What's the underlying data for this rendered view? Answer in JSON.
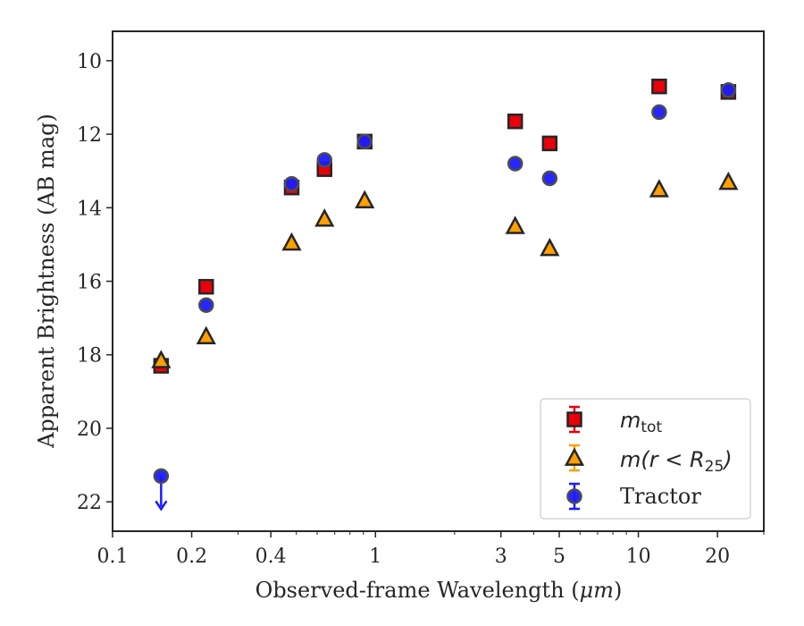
{
  "chart_data": {
    "type": "scatter",
    "xlabel_main": "Observed-frame Wavelength (",
    "xlabel_unit": "μm",
    "xlabel_close": ")",
    "ylabel": "Apparent Brightness (AB mag)",
    "x_scale": "log",
    "xlim": [
      0.1,
      30
    ],
    "ylim": [
      22.8,
      9.2
    ],
    "y_inverted": true,
    "x_ticks": [
      0.1,
      0.2,
      0.4,
      1,
      3,
      5,
      10,
      20
    ],
    "x_tick_labels": [
      "0.1",
      "0.2",
      "0.4",
      "1",
      "3",
      "5",
      "10",
      "20"
    ],
    "y_ticks": [
      10,
      12,
      14,
      16,
      18,
      20,
      22
    ],
    "y_tick_labels": [
      "10",
      "12",
      "14",
      "16",
      "18",
      "20",
      "22"
    ],
    "grid": false,
    "legend_position": "lower-right",
    "series": [
      {
        "key": "mtot",
        "marker": "square",
        "color": "#e8000b",
        "points": [
          {
            "x": 0.153,
            "y": 18.3
          },
          {
            "x": 0.227,
            "y": 16.15
          },
          {
            "x": 0.48,
            "y": 13.45
          },
          {
            "x": 0.64,
            "y": 12.95
          },
          {
            "x": 0.91,
            "y": 12.2
          },
          {
            "x": 3.4,
            "y": 11.65
          },
          {
            "x": 4.6,
            "y": 12.25
          },
          {
            "x": 12.0,
            "y": 10.7
          },
          {
            "x": 22.0,
            "y": 10.85
          }
        ]
      },
      {
        "key": "mr25",
        "marker": "triangle",
        "color": "#ff9f00",
        "points": [
          {
            "x": 0.153,
            "y": 18.15
          },
          {
            "x": 0.227,
            "y": 17.5
          },
          {
            "x": 0.48,
            "y": 14.95
          },
          {
            "x": 0.64,
            "y": 14.3
          },
          {
            "x": 0.91,
            "y": 13.8
          },
          {
            "x": 3.4,
            "y": 14.5
          },
          {
            "x": 4.6,
            "y": 15.1
          },
          {
            "x": 12.0,
            "y": 13.5
          },
          {
            "x": 22.0,
            "y": 13.3
          }
        ]
      },
      {
        "key": "tractor",
        "name": "Tractor",
        "marker": "circle",
        "color": "#1a1aff",
        "points": [
          {
            "x": 0.153,
            "y": 21.3,
            "upper_limit": true
          },
          {
            "x": 0.227,
            "y": 16.65
          },
          {
            "x": 0.48,
            "y": 13.35
          },
          {
            "x": 0.64,
            "y": 12.7
          },
          {
            "x": 0.91,
            "y": 12.2
          },
          {
            "x": 3.4,
            "y": 12.8
          },
          {
            "x": 4.6,
            "y": 13.2
          },
          {
            "x": 12.0,
            "y": 11.4
          },
          {
            "x": 22.0,
            "y": 10.8
          }
        ]
      }
    ],
    "legend": {
      "mtot": {
        "base": "m",
        "sub": "tot"
      },
      "mr25": {
        "prefix": "m(r < R",
        "sub": "25",
        "suffix": ")"
      },
      "tractor": {
        "label": "Tractor"
      }
    }
  }
}
